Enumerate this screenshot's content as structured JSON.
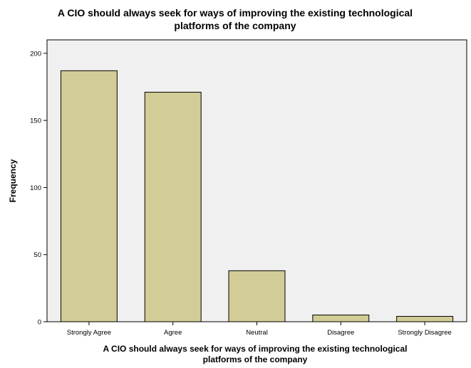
{
  "chart_data": {
    "type": "bar",
    "title_lines": [
      "A CIO should always seek for ways of improving the existing technological",
      "platforms of the company"
    ],
    "xlabel_lines": [
      "A CIO should always seek for ways of improving the existing technological",
      "platforms of the company"
    ],
    "ylabel": "Frequency",
    "categories": [
      "Strongly Agree",
      "Agree",
      "Neutral",
      "Disagree",
      "Strongly Disagree"
    ],
    "values": [
      187,
      171,
      38,
      5,
      4
    ],
    "ylim": [
      0,
      210
    ],
    "yticks": [
      0,
      50,
      100,
      150,
      200
    ],
    "grid": false,
    "legend": "none",
    "colors": {
      "bar_fill": "#d2cc96",
      "bar_stroke": "#000000",
      "plot_background": "#f0f0f0",
      "frame": "#000000"
    }
  }
}
